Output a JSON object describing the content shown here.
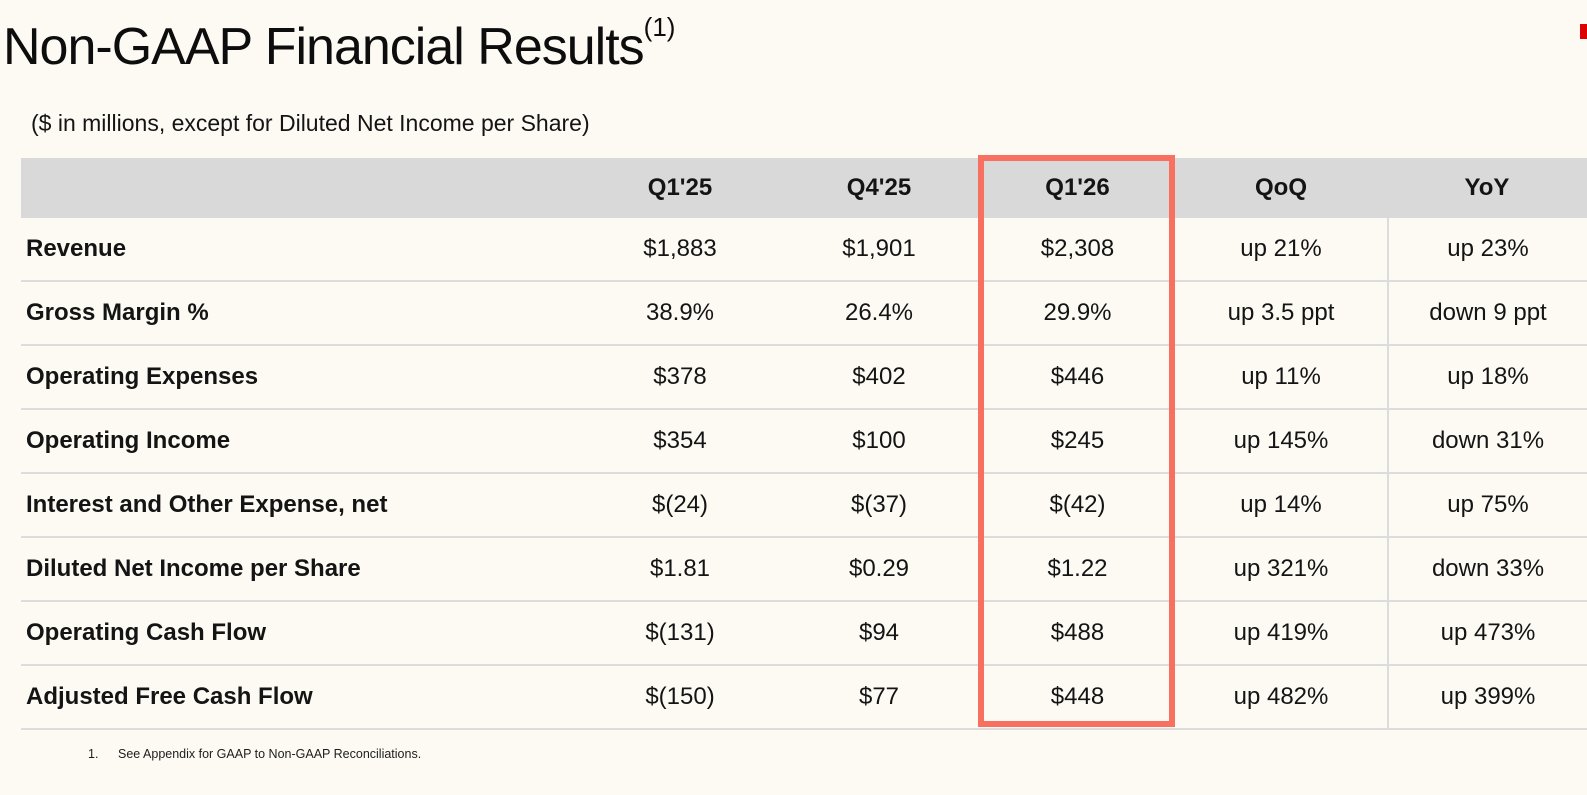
{
  "page": {
    "title": "Non-GAAP Financial Results",
    "title_superscript": "(1)",
    "subtitle": "($ in millions, except for Diluted Net Income per Share)"
  },
  "table": {
    "headers": [
      "",
      "Q1'25",
      "Q4'25",
      "Q1'26",
      "QoQ",
      "YoY"
    ],
    "highlighted_column": "Q1'26",
    "rows": [
      {
        "label": "Revenue",
        "values": [
          "$1,883",
          "$1,901",
          "$2,308",
          "up 21%",
          "up 23%"
        ]
      },
      {
        "label": "Gross Margin %",
        "values": [
          "38.9%",
          "26.4%",
          "29.9%",
          "up 3.5 ppt",
          "down 9 ppt"
        ]
      },
      {
        "label": "Operating Expenses",
        "values": [
          "$378",
          "$402",
          "$446",
          "up 11%",
          "up 18%"
        ]
      },
      {
        "label": "Operating Income",
        "values": [
          "$354",
          "$100",
          "$245",
          "up 145%",
          "down 31%"
        ]
      },
      {
        "label": "Interest and Other Expense, net",
        "values": [
          "$(24)",
          "$(37)",
          "$(42)",
          "up 14%",
          "up 75%"
        ]
      },
      {
        "label": "Diluted Net Income per Share",
        "values": [
          "$1.81",
          "$0.29",
          "$1.22",
          "up 321%",
          "down 33%"
        ]
      },
      {
        "label": "Operating Cash Flow",
        "values": [
          "$(131)",
          "$94",
          "$488",
          "up 419%",
          "up 473%"
        ]
      },
      {
        "label": "Adjusted Free Cash Flow",
        "values": [
          "$(150)",
          "$77",
          "$448",
          "up 482%",
          "up 399%"
        ]
      }
    ]
  },
  "footnote": {
    "number": "1.",
    "text": "See Appendix for GAAP to Non-GAAP Reconciliations."
  },
  "colors": {
    "background": "#fdfaf4",
    "header_bg": "#d9d9d9",
    "row_divider": "#dcdcdc",
    "highlight_border": "#f8705f",
    "corner_accent": "#dd0202",
    "text": "#141414"
  }
}
